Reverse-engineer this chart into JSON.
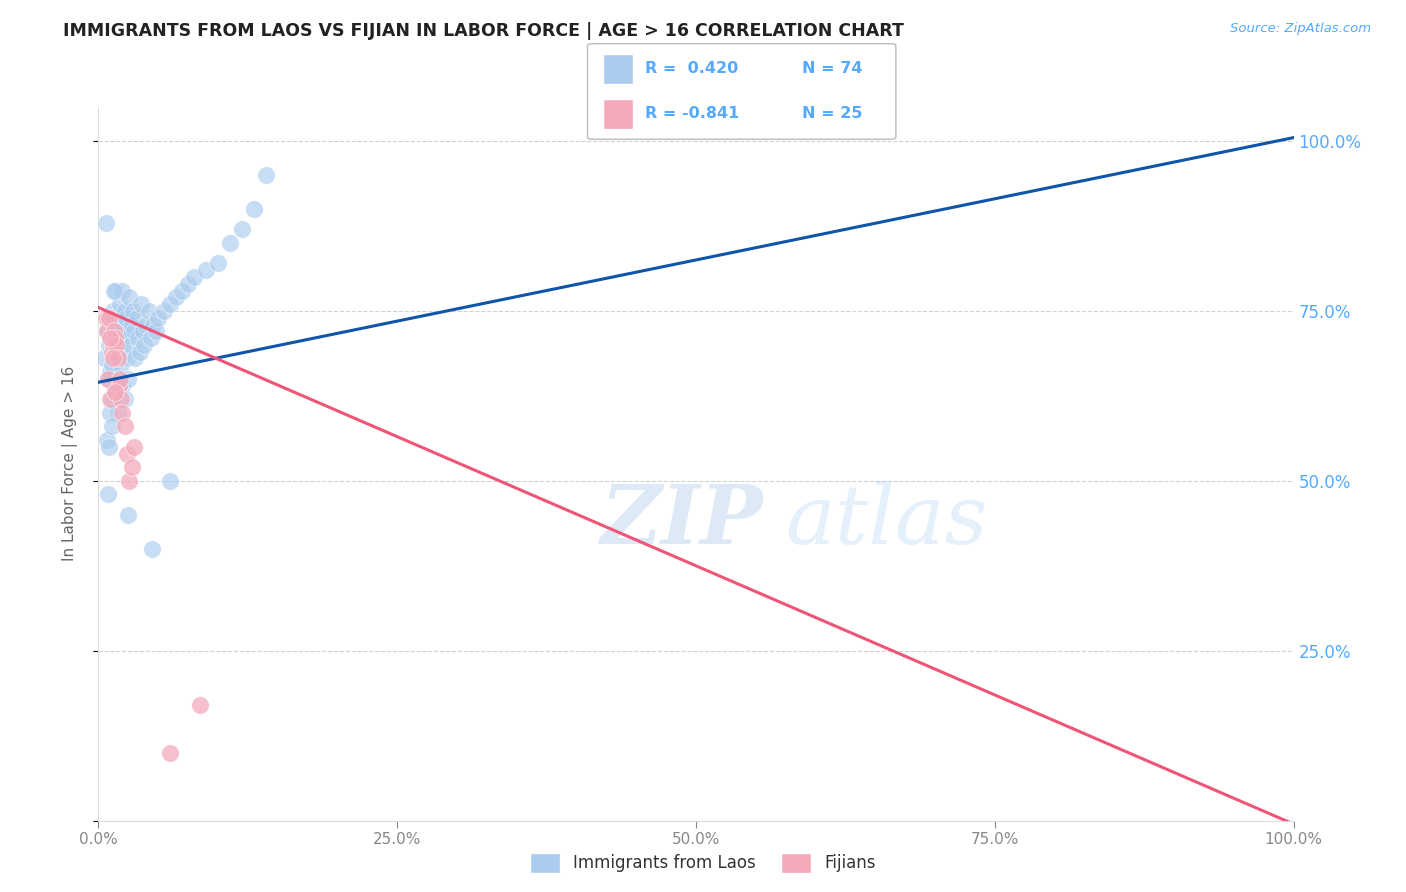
{
  "title": "IMMIGRANTS FROM LAOS VS FIJIAN IN LABOR FORCE | AGE > 16 CORRELATION CHART",
  "source_text": "Source: ZipAtlas.com",
  "ylabel": "In Labor Force | Age > 16",
  "title_color": "#222222",
  "title_fontsize": 12.5,
  "source_color": "#55aaff",
  "axis_label_color": "#666666",
  "right_tick_color": "#55aaff",
  "blue_color": "#aaccee",
  "pink_color": "#f4aabb",
  "blue_line_color": "#1155aa",
  "pink_line_color": "#ee5577",
  "laos_x": [
    0.005,
    0.007,
    0.008,
    0.009,
    0.01,
    0.01,
    0.011,
    0.011,
    0.012,
    0.012,
    0.013,
    0.013,
    0.014,
    0.014,
    0.015,
    0.015,
    0.016,
    0.016,
    0.017,
    0.017,
    0.018,
    0.018,
    0.019,
    0.019,
    0.02,
    0.02,
    0.021,
    0.021,
    0.022,
    0.022,
    0.023,
    0.023,
    0.024,
    0.025,
    0.026,
    0.027,
    0.028,
    0.029,
    0.03,
    0.031,
    0.032,
    0.033,
    0.035,
    0.036,
    0.037,
    0.038,
    0.04,
    0.042,
    0.044,
    0.046,
    0.048,
    0.05,
    0.055,
    0.06,
    0.065,
    0.07,
    0.075,
    0.08,
    0.09,
    0.1,
    0.11,
    0.12,
    0.13,
    0.008,
    0.006,
    0.007,
    0.009,
    0.01,
    0.011,
    0.013,
    0.14,
    0.045,
    0.025,
    0.06
  ],
  "laos_y": [
    0.68,
    0.72,
    0.65,
    0.7,
    0.66,
    0.74,
    0.62,
    0.67,
    0.73,
    0.75,
    0.64,
    0.71,
    0.69,
    0.74,
    0.63,
    0.78,
    0.6,
    0.72,
    0.68,
    0.65,
    0.76,
    0.7,
    0.73,
    0.67,
    0.64,
    0.78,
    0.71,
    0.69,
    0.75,
    0.62,
    0.72,
    0.74,
    0.68,
    0.65,
    0.77,
    0.7,
    0.73,
    0.75,
    0.72,
    0.68,
    0.74,
    0.71,
    0.69,
    0.76,
    0.72,
    0.7,
    0.73,
    0.75,
    0.71,
    0.73,
    0.72,
    0.74,
    0.75,
    0.76,
    0.77,
    0.78,
    0.79,
    0.8,
    0.81,
    0.82,
    0.85,
    0.87,
    0.9,
    0.48,
    0.88,
    0.56,
    0.55,
    0.6,
    0.58,
    0.78,
    0.95,
    0.4,
    0.45,
    0.5
  ],
  "fijian_x": [
    0.006,
    0.007,
    0.008,
    0.009,
    0.01,
    0.011,
    0.012,
    0.013,
    0.014,
    0.015,
    0.016,
    0.017,
    0.018,
    0.019,
    0.02,
    0.022,
    0.024,
    0.026,
    0.028,
    0.03,
    0.06,
    0.085,
    0.01,
    0.012,
    0.014
  ],
  "fijian_y": [
    0.74,
    0.72,
    0.65,
    0.74,
    0.62,
    0.69,
    0.7,
    0.72,
    0.71,
    0.7,
    0.68,
    0.64,
    0.65,
    0.62,
    0.6,
    0.58,
    0.54,
    0.5,
    0.52,
    0.55,
    0.1,
    0.17,
    0.71,
    0.68,
    0.63
  ],
  "xlim": [
    0.0,
    1.0
  ],
  "ylim": [
    0.0,
    1.05
  ],
  "yticks": [
    0.0,
    0.25,
    0.5,
    0.75,
    1.0
  ],
  "ytick_labels_right": [
    "",
    "25.0%",
    "50.0%",
    "75.0%",
    "100.0%"
  ],
  "xticks": [
    0.0,
    0.25,
    0.5,
    0.75,
    1.0
  ],
  "xtick_labels": [
    "0.0%",
    "25.0%",
    "50.0%",
    "75.0%",
    "100.0%"
  ]
}
